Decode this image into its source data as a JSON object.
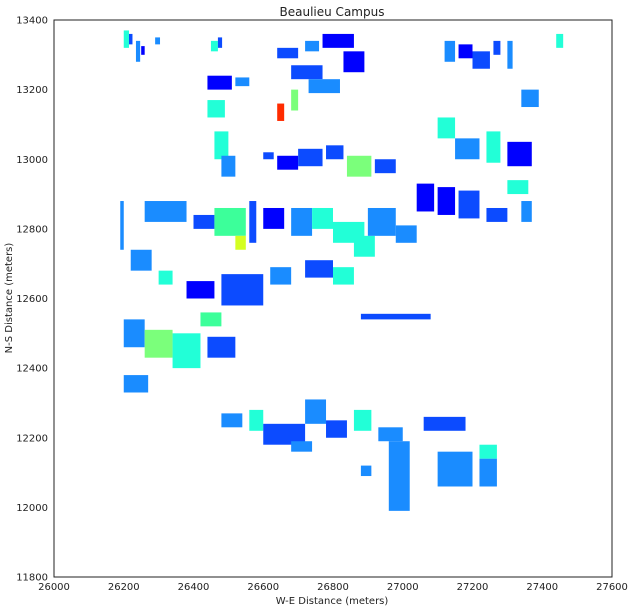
{
  "chart_data": {
    "type": "map-footprint",
    "title": "Beaulieu Campus",
    "xlabel": "W-E Distance (meters)",
    "ylabel": "N-S Distance (meters)",
    "xlim": [
      26000,
      27600
    ],
    "ylim": [
      11800,
      13400
    ],
    "xticks": [
      26000,
      26200,
      26400,
      26600,
      26800,
      27000,
      27200,
      27400,
      27600
    ],
    "yticks": [
      11800,
      12000,
      12200,
      12400,
      12600,
      12800,
      13000,
      13200,
      13400
    ],
    "colormap": "jet",
    "grid": false,
    "buildings": [
      {
        "x": 26200,
        "y": 13320,
        "w": 15,
        "h": 50,
        "c": "#22ffd7"
      },
      {
        "x": 26215,
        "y": 13330,
        "w": 10,
        "h": 30,
        "c": "#0c4bff"
      },
      {
        "x": 26235,
        "y": 13280,
        "w": 12,
        "h": 60,
        "c": "#1a8cff"
      },
      {
        "x": 26250,
        "y": 13300,
        "w": 10,
        "h": 25,
        "c": "#0000ff"
      },
      {
        "x": 26290,
        "y": 13330,
        "w": 14,
        "h": 20,
        "c": "#1a8cff"
      },
      {
        "x": 26450,
        "y": 13310,
        "w": 20,
        "h": 30,
        "c": "#22ffd7"
      },
      {
        "x": 26470,
        "y": 13320,
        "w": 12,
        "h": 30,
        "c": "#0c4bff"
      },
      {
        "x": 26640,
        "y": 13290,
        "w": 60,
        "h": 30,
        "c": "#0c4bff"
      },
      {
        "x": 26720,
        "y": 13310,
        "w": 40,
        "h": 30,
        "c": "#1a8cff"
      },
      {
        "x": 26770,
        "y": 13320,
        "w": 90,
        "h": 40,
        "c": "#0000ff"
      },
      {
        "x": 26830,
        "y": 13250,
        "w": 60,
        "h": 60,
        "c": "#0000ff"
      },
      {
        "x": 26680,
        "y": 13230,
        "w": 90,
        "h": 40,
        "c": "#0c4bff"
      },
      {
        "x": 26680,
        "y": 13140,
        "w": 20,
        "h": 60,
        "c": "#7bff7b"
      },
      {
        "x": 26730,
        "y": 13190,
        "w": 90,
        "h": 40,
        "c": "#1a8cff"
      },
      {
        "x": 26640,
        "y": 13110,
        "w": 20,
        "h": 50,
        "c": "#ff2b00"
      },
      {
        "x": 27120,
        "y": 13280,
        "w": 30,
        "h": 60,
        "c": "#1a8cff"
      },
      {
        "x": 27160,
        "y": 13290,
        "w": 40,
        "h": 40,
        "c": "#0000ff"
      },
      {
        "x": 27200,
        "y": 13260,
        "w": 50,
        "h": 50,
        "c": "#0c4bff"
      },
      {
        "x": 27260,
        "y": 13300,
        "w": 20,
        "h": 40,
        "c": "#0c4bff"
      },
      {
        "x": 27300,
        "y": 13260,
        "w": 15,
        "h": 80,
        "c": "#1a8cff"
      },
      {
        "x": 27440,
        "y": 13320,
        "w": 20,
        "h": 40,
        "c": "#22ffd7"
      },
      {
        "x": 26440,
        "y": 13200,
        "w": 70,
        "h": 40,
        "c": "#0000ff"
      },
      {
        "x": 26520,
        "y": 13210,
        "w": 40,
        "h": 25,
        "c": "#1a8cff"
      },
      {
        "x": 26440,
        "y": 13120,
        "w": 50,
        "h": 50,
        "c": "#22ffd7"
      },
      {
        "x": 26460,
        "y": 13000,
        "w": 40,
        "h": 80,
        "c": "#22ffd7"
      },
      {
        "x": 26480,
        "y": 12950,
        "w": 40,
        "h": 60,
        "c": "#1a8cff"
      },
      {
        "x": 26600,
        "y": 13000,
        "w": 30,
        "h": 20,
        "c": "#0c4bff"
      },
      {
        "x": 26640,
        "y": 12970,
        "w": 60,
        "h": 40,
        "c": "#0000ff"
      },
      {
        "x": 26700,
        "y": 12980,
        "w": 70,
        "h": 50,
        "c": "#0c4bff"
      },
      {
        "x": 26780,
        "y": 13000,
        "w": 50,
        "h": 40,
        "c": "#0c4bff"
      },
      {
        "x": 26840,
        "y": 12950,
        "w": 70,
        "h": 60,
        "c": "#7bff7b"
      },
      {
        "x": 26920,
        "y": 12960,
        "w": 60,
        "h": 40,
        "c": "#0c4bff"
      },
      {
        "x": 27100,
        "y": 13060,
        "w": 50,
        "h": 60,
        "c": "#22ffd7"
      },
      {
        "x": 27150,
        "y": 13000,
        "w": 70,
        "h": 60,
        "c": "#1a8cff"
      },
      {
        "x": 27240,
        "y": 12990,
        "w": 40,
        "h": 90,
        "c": "#22ffd7"
      },
      {
        "x": 27300,
        "y": 12980,
        "w": 70,
        "h": 70,
        "c": "#0000ff"
      },
      {
        "x": 27300,
        "y": 12900,
        "w": 60,
        "h": 40,
        "c": "#22ffd7"
      },
      {
        "x": 27340,
        "y": 13150,
        "w": 50,
        "h": 50,
        "c": "#1a8cff"
      },
      {
        "x": 26190,
        "y": 12740,
        "w": 10,
        "h": 140,
        "c": "#1a8cff"
      },
      {
        "x": 26260,
        "y": 12820,
        "w": 120,
        "h": 60,
        "c": "#1a8cff"
      },
      {
        "x": 26400,
        "y": 12800,
        "w": 60,
        "h": 40,
        "c": "#0c4bff"
      },
      {
        "x": 26460,
        "y": 12780,
        "w": 90,
        "h": 80,
        "c": "#3cff9a"
      },
      {
        "x": 26520,
        "y": 12740,
        "w": 30,
        "h": 40,
        "c": "#d4ff22"
      },
      {
        "x": 26560,
        "y": 12760,
        "w": 20,
        "h": 120,
        "c": "#0c4bff"
      },
      {
        "x": 26600,
        "y": 12800,
        "w": 60,
        "h": 60,
        "c": "#0000ff"
      },
      {
        "x": 26680,
        "y": 12780,
        "w": 60,
        "h": 80,
        "c": "#1a8cff"
      },
      {
        "x": 26740,
        "y": 12800,
        "w": 60,
        "h": 60,
        "c": "#22ffd7"
      },
      {
        "x": 26800,
        "y": 12760,
        "w": 90,
        "h": 60,
        "c": "#22ffd7"
      },
      {
        "x": 26860,
        "y": 12720,
        "w": 60,
        "h": 60,
        "c": "#22ffd7"
      },
      {
        "x": 26900,
        "y": 12780,
        "w": 80,
        "h": 80,
        "c": "#1a8cff"
      },
      {
        "x": 26980,
        "y": 12760,
        "w": 60,
        "h": 50,
        "c": "#1a8cff"
      },
      {
        "x": 27040,
        "y": 12850,
        "w": 50,
        "h": 80,
        "c": "#0000ff"
      },
      {
        "x": 27100,
        "y": 12840,
        "w": 50,
        "h": 80,
        "c": "#0000ff"
      },
      {
        "x": 27160,
        "y": 12830,
        "w": 60,
        "h": 80,
        "c": "#0c4bff"
      },
      {
        "x": 27240,
        "y": 12820,
        "w": 60,
        "h": 40,
        "c": "#0c4bff"
      },
      {
        "x": 27340,
        "y": 12820,
        "w": 30,
        "h": 60,
        "c": "#1a8cff"
      },
      {
        "x": 26220,
        "y": 12680,
        "w": 60,
        "h": 60,
        "c": "#1a8cff"
      },
      {
        "x": 26300,
        "y": 12640,
        "w": 40,
        "h": 40,
        "c": "#22ffd7"
      },
      {
        "x": 26380,
        "y": 12600,
        "w": 80,
        "h": 50,
        "c": "#0000ff"
      },
      {
        "x": 26480,
        "y": 12580,
        "w": 120,
        "h": 90,
        "c": "#0c4bff"
      },
      {
        "x": 26620,
        "y": 12640,
        "w": 60,
        "h": 50,
        "c": "#1a8cff"
      },
      {
        "x": 26720,
        "y": 12660,
        "w": 80,
        "h": 50,
        "c": "#0c4bff"
      },
      {
        "x": 26800,
        "y": 12640,
        "w": 60,
        "h": 50,
        "c": "#22ffd7"
      },
      {
        "x": 26880,
        "y": 12540,
        "w": 200,
        "h": 16,
        "c": "#0c4bff"
      },
      {
        "x": 26200,
        "y": 12460,
        "w": 60,
        "h": 80,
        "c": "#1a8cff"
      },
      {
        "x": 26260,
        "y": 12430,
        "w": 80,
        "h": 80,
        "c": "#7bff7b"
      },
      {
        "x": 26340,
        "y": 12400,
        "w": 80,
        "h": 100,
        "c": "#22ffd7"
      },
      {
        "x": 26420,
        "y": 12520,
        "w": 60,
        "h": 40,
        "c": "#3cff9a"
      },
      {
        "x": 26440,
        "y": 12430,
        "w": 80,
        "h": 60,
        "c": "#0c4bff"
      },
      {
        "x": 26200,
        "y": 12330,
        "w": 70,
        "h": 50,
        "c": "#1a8cff"
      },
      {
        "x": 26480,
        "y": 12230,
        "w": 60,
        "h": 40,
        "c": "#1a8cff"
      },
      {
        "x": 26560,
        "y": 12220,
        "w": 40,
        "h": 60,
        "c": "#22ffd7"
      },
      {
        "x": 26600,
        "y": 12180,
        "w": 120,
        "h": 60,
        "c": "#0c4bff"
      },
      {
        "x": 26720,
        "y": 12240,
        "w": 60,
        "h": 70,
        "c": "#1a8cff"
      },
      {
        "x": 26680,
        "y": 12160,
        "w": 60,
        "h": 30,
        "c": "#1a8cff"
      },
      {
        "x": 26780,
        "y": 12200,
        "w": 60,
        "h": 50,
        "c": "#0c4bff"
      },
      {
        "x": 26860,
        "y": 12220,
        "w": 50,
        "h": 60,
        "c": "#22ffd7"
      },
      {
        "x": 26930,
        "y": 12190,
        "w": 70,
        "h": 40,
        "c": "#1a8cff"
      },
      {
        "x": 26880,
        "y": 12090,
        "w": 30,
        "h": 30,
        "c": "#1a8cff"
      },
      {
        "x": 26960,
        "y": 11990,
        "w": 60,
        "h": 200,
        "c": "#1a8cff"
      },
      {
        "x": 27100,
        "y": 12060,
        "w": 100,
        "h": 100,
        "c": "#1a8cff"
      },
      {
        "x": 27220,
        "y": 12060,
        "w": 50,
        "h": 80,
        "c": "#1a8cff"
      },
      {
        "x": 27220,
        "y": 12140,
        "w": 50,
        "h": 40,
        "c": "#22ffd7"
      },
      {
        "x": 27060,
        "y": 12220,
        "w": 120,
        "h": 40,
        "c": "#0c4bff"
      }
    ]
  }
}
